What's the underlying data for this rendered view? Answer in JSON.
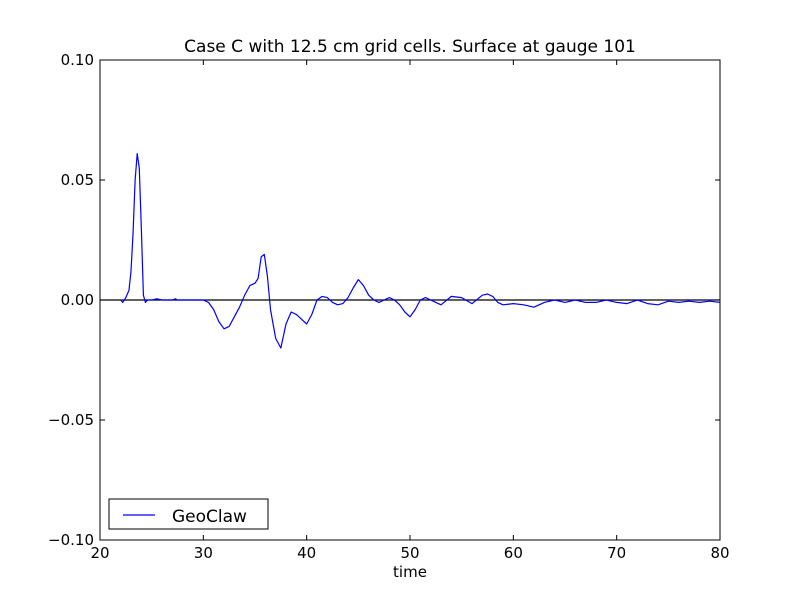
{
  "chart_data": {
    "type": "line",
    "title": "Case C with 12.5 cm grid cells.  Surface at gauge 101",
    "xlabel": "time",
    "ylabel": "",
    "xlim": [
      20,
      80
    ],
    "ylim": [
      -0.1,
      0.1
    ],
    "xticks": [
      "20",
      "30",
      "40",
      "50",
      "60",
      "70",
      "80"
    ],
    "yticks": [
      "−0.10",
      "−0.05",
      "0.00",
      "0.05",
      "0.10"
    ],
    "grid": false,
    "legend_position": "lower-left",
    "reference_line": {
      "y": 0.0,
      "color": "#000000"
    },
    "series": [
      {
        "name": "GeoClaw",
        "color": "#0000ff",
        "x": [
          22.0,
          22.2,
          22.5,
          22.8,
          23.0,
          23.2,
          23.4,
          23.6,
          23.8,
          24.0,
          24.2,
          24.4,
          24.6,
          24.8,
          25.0,
          25.5,
          26.0,
          26.5,
          27.0,
          27.3,
          27.5,
          28.0,
          29.0,
          30.0,
          30.5,
          31.0,
          31.5,
          32.0,
          32.5,
          33.0,
          33.5,
          34.0,
          34.5,
          35.0,
          35.3,
          35.6,
          35.9,
          36.2,
          36.5,
          37.0,
          37.5,
          38.0,
          38.5,
          39.0,
          39.5,
          40.0,
          40.5,
          41.0,
          41.5,
          42.0,
          42.5,
          43.0,
          43.5,
          44.0,
          44.5,
          45.0,
          45.5,
          46.0,
          46.5,
          47.0,
          47.5,
          48.0,
          48.5,
          49.0,
          49.5,
          50.0,
          50.5,
          51.0,
          51.5,
          52.0,
          52.5,
          53.0,
          54.0,
          55.0,
          56.0,
          57.0,
          57.5,
          58.0,
          58.5,
          59.0,
          60.0,
          61.0,
          62.0,
          63.0,
          64.0,
          65.0,
          66.0,
          67.0,
          68.0,
          69.0,
          70.0,
          71.0,
          72.0,
          73.0,
          74.0,
          75.0,
          76.0,
          77.0,
          78.0,
          79.0,
          80.0
        ],
        "y": [
          0.0,
          -0.001,
          0.001,
          0.004,
          0.012,
          0.028,
          0.05,
          0.061,
          0.055,
          0.03,
          0.002,
          -0.001,
          0.0,
          0.0,
          0.0,
          0.0005,
          0.0,
          0.0,
          0.0,
          0.0005,
          0.0,
          0.0,
          0.0,
          0.0,
          -0.001,
          -0.004,
          -0.009,
          -0.012,
          -0.011,
          -0.007,
          -0.003,
          0.002,
          0.006,
          0.007,
          0.009,
          0.018,
          0.019,
          0.01,
          -0.004,
          -0.016,
          -0.02,
          -0.01,
          -0.005,
          -0.006,
          -0.008,
          -0.01,
          -0.006,
          0.0,
          0.0015,
          0.001,
          -0.001,
          -0.002,
          -0.0015,
          0.001,
          0.005,
          0.0085,
          0.006,
          0.002,
          0.0,
          -0.001,
          0.0,
          0.001,
          0.0,
          -0.002,
          -0.005,
          -0.007,
          -0.004,
          0.0,
          0.001,
          0.0,
          -0.001,
          -0.002,
          0.0015,
          0.001,
          -0.0015,
          0.002,
          0.0025,
          0.0015,
          -0.001,
          -0.002,
          -0.0015,
          -0.002,
          -0.003,
          -0.001,
          0.0,
          -0.001,
          0.0,
          -0.001,
          -0.001,
          0.0,
          -0.001,
          -0.0015,
          0.0,
          -0.0015,
          -0.002,
          -0.0005,
          -0.001,
          -0.0005,
          -0.001,
          -0.0005,
          -0.001
        ]
      }
    ]
  }
}
